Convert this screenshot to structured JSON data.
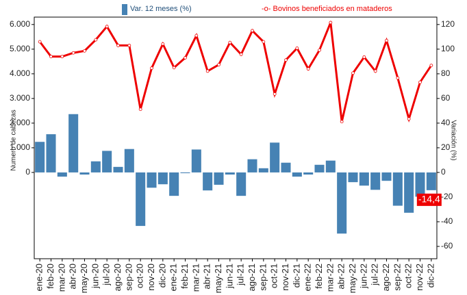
{
  "chart_data": {
    "type": "combo",
    "categories": [
      "ene-20",
      "feb-20",
      "mar-20",
      "abr-20",
      "may-20",
      "jun-20",
      "jul-20",
      "ago-20",
      "sep-20",
      "oct-20",
      "nov-20",
      "dic-20",
      "ene-21",
      "feb-21",
      "mar-21",
      "abr-21",
      "may-21",
      "jun-21",
      "jul-21",
      "ago-21",
      "sep-21",
      "oct-21",
      "nov-21",
      "dic-21",
      "ene-22",
      "feb-22",
      "mar-22",
      "abr-22",
      "may-22",
      "jun-22",
      "jul-22",
      "ago-22",
      "sep-22",
      "oct-22",
      "nov-22",
      "dic-22"
    ],
    "series": [
      {
        "name": "Var. 12 meses (%)",
        "type": "bar",
        "axis": "y2",
        "color": "#4682b4",
        "values": [
          24.8,
          31,
          -3.4,
          47.3,
          -1.7,
          9,
          17.5,
          4.5,
          19,
          -43.4,
          -12.4,
          -9.6,
          -19,
          -0.6,
          18.6,
          -14.6,
          -10,
          -1.7,
          -19,
          10.7,
          3.4,
          24.2,
          7.9,
          -3.4,
          -1.7,
          6.2,
          9.6,
          -49.6,
          -7.9,
          -10.7,
          -14.1,
          -6.8,
          -27,
          -32.7,
          -19.7,
          -14.4
        ],
        "value_labels": [
          null,
          null,
          null,
          null,
          null,
          null,
          null,
          null,
          null,
          null,
          null,
          null,
          null,
          null,
          null,
          null,
          null,
          null,
          null,
          null,
          null,
          null,
          null,
          null,
          null,
          null,
          null,
          null,
          null,
          null,
          null,
          null,
          null,
          null,
          null,
          "-14,4"
        ]
      },
      {
        "name": "-o- Bovinos beneficiados en mataderos",
        "type": "line",
        "axis": "y",
        "color": "#ee0000",
        "values": [
          5300,
          4700,
          4700,
          4850,
          4930,
          5380,
          5920,
          5150,
          5150,
          2560,
          4230,
          5210,
          4250,
          4650,
          5550,
          4110,
          4370,
          5270,
          4790,
          5750,
          5300,
          3180,
          4560,
          5040,
          4200,
          4960,
          6080,
          2060,
          4030,
          4680,
          4110,
          5350,
          3830,
          2170,
          3660,
          4340
        ]
      }
    ],
    "y_label": "Numero de cabezas",
    "y2_label": "Variación (%)",
    "ylim": [
      -3500,
      6300
    ],
    "yticks": [
      0,
      {
        "value": 1000,
        "label": "1.000"
      },
      {
        "value": 2000,
        "label": "2.000"
      },
      {
        "value": 3000,
        "label": "3.000"
      },
      {
        "value": 4000,
        "label": "4.000"
      },
      {
        "value": 5000,
        "label": "5.000"
      },
      {
        "value": 6000,
        "label": "6.000"
      }
    ],
    "y2lim": [
      -70,
      126
    ],
    "y2ticks": [
      -60,
      -40,
      -20,
      0,
      20,
      40,
      60,
      80,
      100,
      120
    ]
  }
}
